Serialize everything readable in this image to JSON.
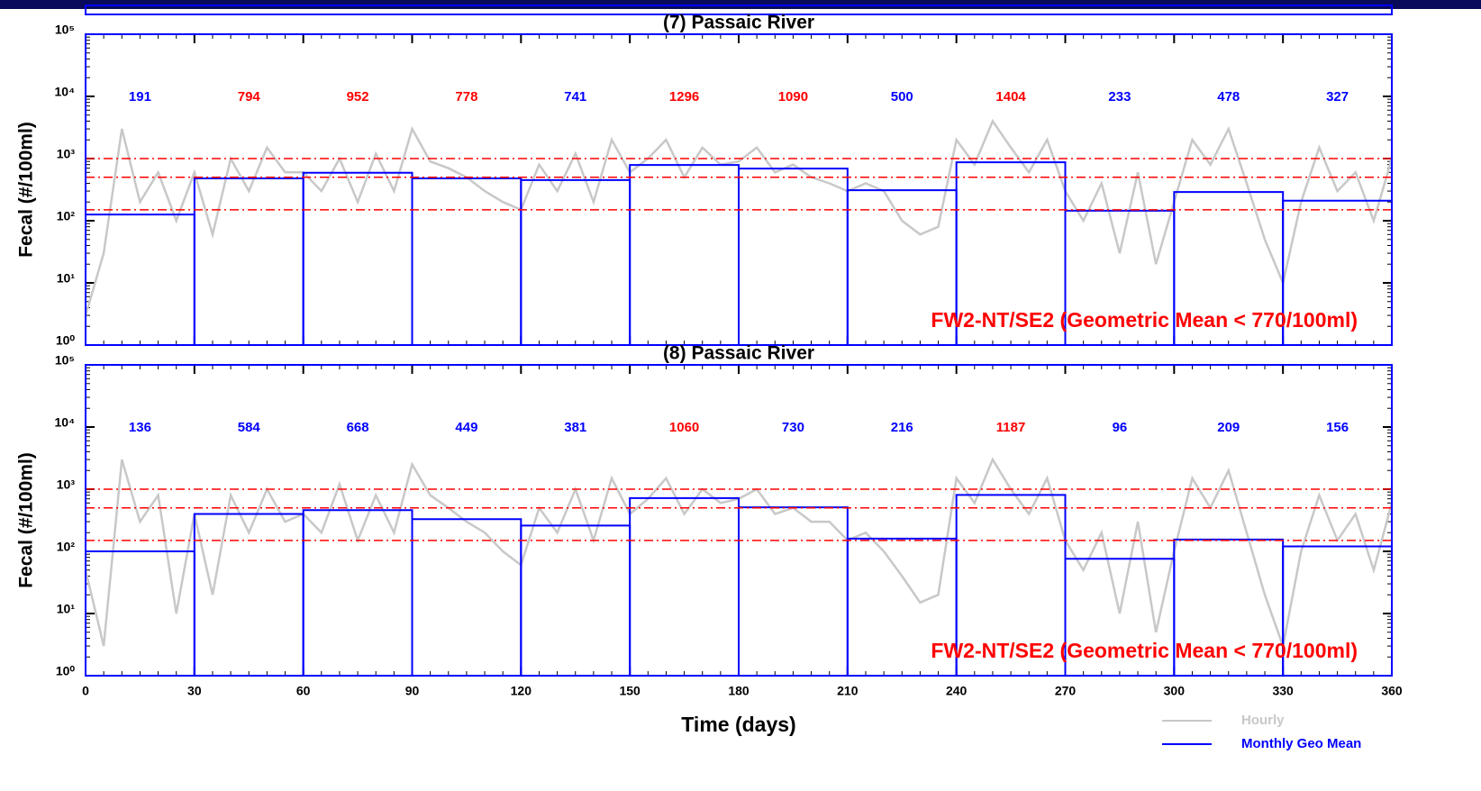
{
  "chart_data": [
    {
      "type": "line",
      "title": "(7) Passaic River",
      "y_label": "Fecal (#/100ml)",
      "log_y": true,
      "xlim": [
        0,
        360
      ],
      "xticks": [
        0,
        30,
        60,
        90,
        120,
        150,
        180,
        210,
        240,
        270,
        300,
        330,
        360
      ],
      "show_xtick_labels": false,
      "ylim": [
        1,
        100000
      ],
      "yticks": [
        {
          "value": 1,
          "label": "10⁰"
        },
        {
          "value": 10,
          "label": "10¹"
        },
        {
          "value": 100,
          "label": "10²"
        },
        {
          "value": 1000,
          "label": "10³"
        },
        {
          "value": 10000,
          "label": "10⁴"
        },
        {
          "value": 100000,
          "label": "10⁵"
        }
      ],
      "series": [
        {
          "type": "line",
          "color": "#c8c8c8",
          "x": [
            0,
            5,
            10,
            15,
            20,
            25,
            30,
            35,
            40,
            45,
            50,
            55,
            60,
            65,
            70,
            75,
            80,
            85,
            90,
            95,
            100,
            105,
            110,
            115,
            120,
            125,
            130,
            135,
            140,
            145,
            150,
            155,
            160,
            165,
            170,
            175,
            180,
            185,
            190,
            195,
            200,
            205,
            210,
            215,
            220,
            225,
            230,
            235,
            240,
            245,
            250,
            255,
            260,
            265,
            270,
            275,
            280,
            285,
            290,
            295,
            300,
            305,
            310,
            315,
            320,
            325,
            330,
            335,
            340,
            345,
            350,
            355,
            360
          ],
          "values": [
            3,
            30,
            3000,
            200,
            600,
            100,
            600,
            60,
            1000,
            300,
            1500,
            600,
            600,
            300,
            1000,
            200,
            1200,
            300,
            3000,
            900,
            700,
            500,
            300,
            200,
            150,
            800,
            300,
            1200,
            200,
            2000,
            600,
            1000,
            2000,
            500,
            1500,
            800,
            900,
            1500,
            600,
            800,
            500,
            400,
            300,
            400,
            300,
            100,
            60,
            80,
            2000,
            800,
            4000,
            1500,
            600,
            2000,
            300,
            100,
            400,
            30,
            600,
            20,
            200,
            2000,
            800,
            3000,
            400,
            50,
            10,
            200,
            1500,
            300,
            600,
            100,
            1000
          ]
        },
        {
          "type": "step",
          "color": "#0000ff",
          "bins": [
            0,
            30,
            60,
            90,
            120,
            150,
            180,
            210,
            240,
            270,
            300,
            330,
            360
          ],
          "values": [
            126,
            480,
            590,
            480,
            450,
            790,
            690,
            310,
            870,
            145,
            290,
            210
          ]
        }
      ],
      "reference_lines": {
        "color": "#ff0000",
        "values": [
          1000,
          500,
          150
        ]
      },
      "month_labels": [
        "191",
        "794",
        "952",
        "778",
        "741",
        "1296",
        "1090",
        "500",
        "1404",
        "233",
        "478",
        "327"
      ],
      "month_label_colors": [
        "#0000ff",
        "#ff0000",
        "#ff0000",
        "#ff0000",
        "#0000ff",
        "#ff0000",
        "#ff0000",
        "#0000ff",
        "#ff0000",
        "#0000ff",
        "#0000ff",
        "#0000ff"
      ],
      "standard": "FW2-NT/SE2 (Geometric Mean < 770/100ml)",
      "standard_color": "#ff0000"
    },
    {
      "type": "line",
      "title": "(8) Passaic River",
      "y_label": "Fecal (#/100ml)",
      "x_label": "Time (days)",
      "log_y": true,
      "xlim": [
        0,
        360
      ],
      "xticks": [
        0,
        30,
        60,
        90,
        120,
        150,
        180,
        210,
        240,
        270,
        300,
        330,
        360
      ],
      "show_xtick_labels": true,
      "ylim": [
        1,
        100000
      ],
      "yticks": [
        {
          "value": 1,
          "label": "10⁰"
        },
        {
          "value": 10,
          "label": "10¹"
        },
        {
          "value": 100,
          "label": "10²"
        },
        {
          "value": 1000,
          "label": "10³"
        },
        {
          "value": 10000,
          "label": "10⁴"
        },
        {
          "value": 100000,
          "label": "10⁵"
        }
      ],
      "series": [
        {
          "type": "line",
          "color": "#c8c8c8",
          "x": [
            0,
            5,
            10,
            15,
            20,
            25,
            30,
            35,
            40,
            45,
            50,
            55,
            60,
            65,
            70,
            75,
            80,
            85,
            90,
            95,
            100,
            105,
            110,
            115,
            120,
            125,
            130,
            135,
            140,
            145,
            150,
            155,
            160,
            165,
            170,
            175,
            180,
            185,
            190,
            195,
            200,
            205,
            210,
            215,
            220,
            225,
            230,
            235,
            240,
            245,
            250,
            255,
            260,
            265,
            270,
            275,
            280,
            285,
            290,
            295,
            300,
            305,
            310,
            315,
            320,
            325,
            330,
            335,
            340,
            345,
            350,
            355,
            360
          ],
          "values": [
            50,
            3,
            3000,
            300,
            800,
            10,
            400,
            20,
            800,
            200,
            1000,
            300,
            400,
            200,
            1200,
            150,
            800,
            200,
            2500,
            800,
            500,
            300,
            200,
            100,
            60,
            500,
            200,
            1000,
            150,
            1500,
            400,
            700,
            1500,
            400,
            1000,
            600,
            700,
            1000,
            400,
            500,
            300,
            300,
            150,
            200,
            100,
            40,
            15,
            20,
            1500,
            600,
            3000,
            1000,
            400,
            1500,
            150,
            50,
            200,
            10,
            300,
            5,
            100,
            1500,
            500,
            2000,
            200,
            20,
            3,
            100,
            800,
            150,
            400,
            50,
            600
          ]
        },
        {
          "type": "step",
          "color": "#0000ff",
          "bins": [
            0,
            30,
            60,
            90,
            120,
            150,
            180,
            210,
            240,
            270,
            300,
            330,
            360
          ],
          "values": [
            100,
            400,
            460,
            330,
            260,
            720,
            510,
            160,
            810,
            76,
            155,
            120
          ]
        }
      ],
      "reference_lines": {
        "color": "#ff0000",
        "values": [
          1000,
          500,
          150
        ]
      },
      "month_labels": [
        "136",
        "584",
        "668",
        "449",
        "381",
        "1060",
        "730",
        "216",
        "1187",
        "96",
        "209",
        "156"
      ],
      "month_label_colors": [
        "#0000ff",
        "#0000ff",
        "#0000ff",
        "#0000ff",
        "#0000ff",
        "#ff0000",
        "#0000ff",
        "#0000ff",
        "#ff0000",
        "#0000ff",
        "#0000ff",
        "#0000ff"
      ],
      "standard": "FW2-NT/SE2 (Geometric Mean < 770/100ml)",
      "standard_color": "#ff0000"
    }
  ],
  "legend": [
    {
      "name": "Hourly",
      "color": "#c8c8c8"
    },
    {
      "name": "Monthly Geo Mean",
      "color": "#0000ff"
    }
  ]
}
